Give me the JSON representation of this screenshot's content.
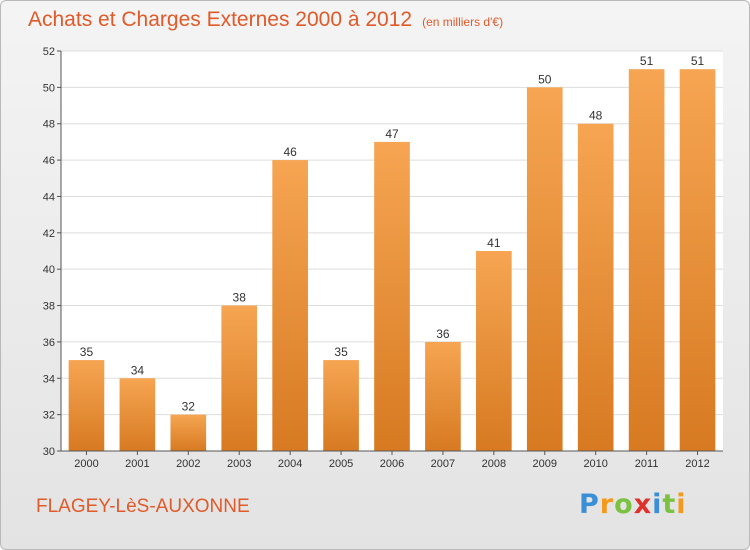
{
  "title": "Achats et Charges Externes 2000 à 2012",
  "unit": "(en milliers d'€)",
  "commune": "FLAGEY-LèS-AUXONNE",
  "logo": {
    "letters": [
      "P",
      "r",
      "o",
      "x",
      "i",
      "t",
      "i"
    ],
    "colors": [
      "#3a8fd6",
      "#f39a1d",
      "#7cc242",
      "#e0302a",
      "#3a8fd6",
      "#7cc242",
      "#f39a1d"
    ]
  },
  "colors": {
    "accent": "#e05a2a",
    "bar_light": "#f6a552",
    "bar_dark": "#d77a22",
    "grid": "#dddddd"
  },
  "chart_data": {
    "type": "bar",
    "categories": [
      "2000",
      "2001",
      "2002",
      "2003",
      "2004",
      "2005",
      "2006",
      "2007",
      "2008",
      "2009",
      "2010",
      "2011",
      "2012"
    ],
    "values": [
      35,
      34,
      32,
      38,
      46,
      35,
      47,
      36,
      41,
      50,
      48,
      51,
      51
    ],
    "ylim": [
      30,
      52
    ],
    "yticks": [
      30,
      32,
      34,
      36,
      38,
      40,
      42,
      44,
      46,
      48,
      50,
      52
    ],
    "grid": true,
    "legend": "none"
  }
}
